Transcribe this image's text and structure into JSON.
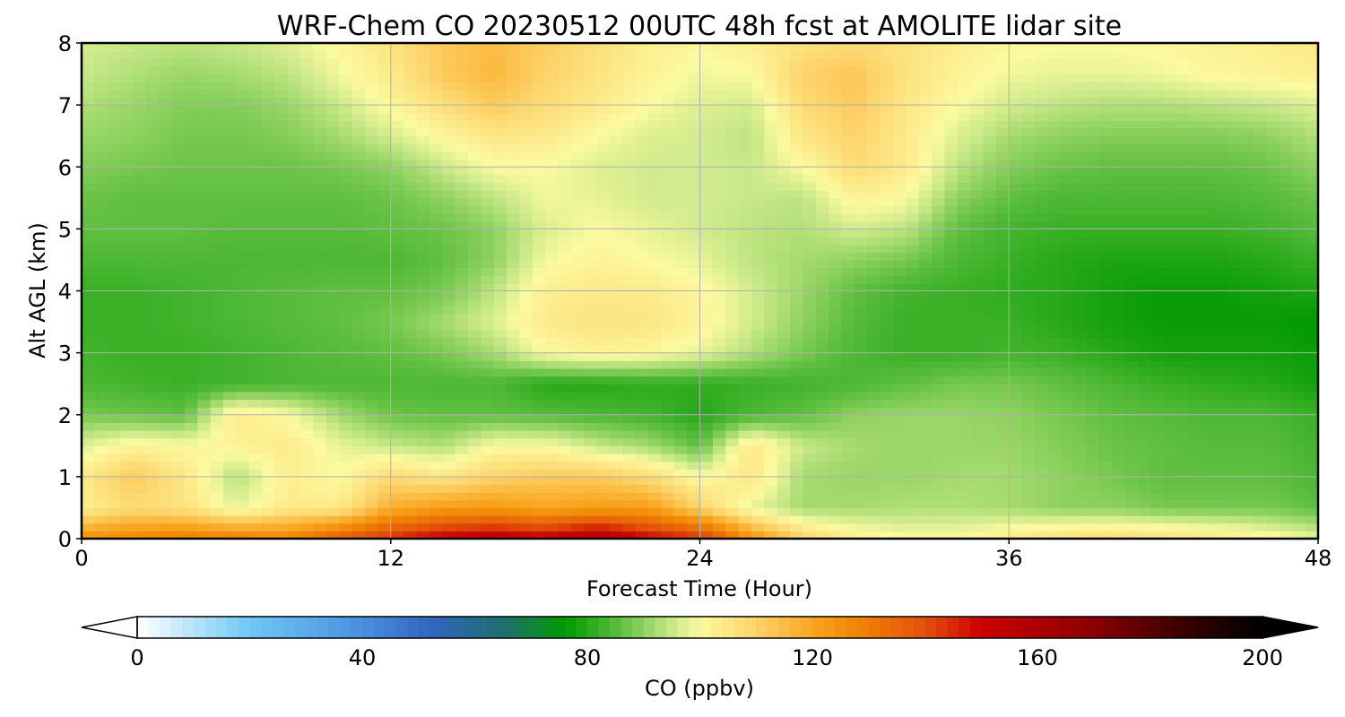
{
  "chart_data": {
    "type": "heatmap",
    "title": "WRF-Chem CO  20230512 00UTC 48h fcst at AMOLITE lidar site",
    "xlabel": "Forecast Time (Hour)",
    "ylabel": "Alt AGL (km)",
    "xlim": [
      0,
      48
    ],
    "ylim": [
      0,
      8
    ],
    "xticks": [
      "0",
      "12",
      "24",
      "36",
      "48"
    ],
    "yticks": [
      "0",
      "1",
      "2",
      "3",
      "4",
      "5",
      "6",
      "7",
      "8"
    ],
    "grid": true,
    "x": [
      0,
      2,
      4,
      6,
      8,
      10,
      12,
      14,
      16,
      18,
      20,
      22,
      24,
      26,
      28,
      30,
      32,
      34,
      36,
      38,
      40,
      42,
      44,
      46,
      48
    ],
    "y": [
      0,
      0.5,
      1,
      1.5,
      2,
      2.5,
      3,
      3.5,
      4,
      4.5,
      5,
      5.5,
      6,
      6.5,
      7,
      7.5,
      8
    ],
    "values": [
      [
        125,
        128,
        130,
        130,
        128,
        138,
        145,
        152,
        155,
        152,
        160,
        150,
        145,
        125,
        110,
        103,
        100,
        100,
        104,
        107,
        108,
        107,
        105,
        102,
        98
      ],
      [
        103,
        108,
        106,
        98,
        104,
        104,
        118,
        122,
        123,
        120,
        122,
        122,
        110,
        98,
        92,
        92,
        93,
        93,
        92,
        90,
        90,
        88,
        88,
        88,
        86
      ],
      [
        104,
        112,
        105,
        93,
        103,
        100,
        108,
        105,
        110,
        112,
        112,
        108,
        100,
        105,
        92,
        91,
        91,
        92,
        92,
        90,
        88,
        86,
        86,
        86,
        84
      ],
      [
        97,
        102,
        100,
        102,
        104,
        98,
        95,
        93,
        100,
        100,
        95,
        92,
        86,
        105,
        95,
        92,
        91,
        91,
        91,
        89,
        87,
        86,
        85,
        85,
        83
      ],
      [
        88,
        87,
        86,
        104,
        100,
        92,
        87,
        86,
        86,
        85,
        84,
        83,
        80,
        84,
        86,
        90,
        91,
        91,
        90,
        88,
        86,
        85,
        84,
        84,
        82
      ],
      [
        84,
        83,
        82,
        83,
        84,
        84,
        84,
        84,
        84,
        80,
        80,
        81,
        81,
        82,
        83,
        84,
        86,
        88,
        88,
        86,
        84,
        82,
        81,
        80,
        78
      ],
      [
        83,
        82,
        82,
        83,
        84,
        85,
        86,
        88,
        92,
        100,
        102,
        101,
        98,
        93,
        88,
        84,
        82,
        82,
        83,
        82,
        80,
        78,
        78,
        78,
        77
      ],
      [
        82,
        82,
        83,
        84,
        85,
        86,
        88,
        92,
        97,
        104,
        106,
        105,
        102,
        96,
        90,
        85,
        82,
        82,
        82,
        80,
        78,
        77,
        77,
        77,
        76
      ],
      [
        82,
        82,
        83,
        84,
        85,
        86,
        86,
        88,
        94,
        103,
        104,
        104,
        101,
        96,
        91,
        86,
        83,
        82,
        81,
        80,
        78,
        77,
        77,
        78,
        79
      ],
      [
        84,
        84,
        84,
        84,
        84,
        84,
        84,
        86,
        90,
        99,
        102,
        100,
        98,
        94,
        92,
        90,
        88,
        84,
        82,
        80,
        79,
        79,
        79,
        80,
        82
      ],
      [
        86,
        86,
        86,
        85,
        85,
        85,
        86,
        87,
        90,
        97,
        100,
        98,
        96,
        94,
        93,
        96,
        94,
        86,
        83,
        82,
        82,
        82,
        82,
        83,
        85
      ],
      [
        87,
        86,
        86,
        86,
        86,
        86,
        87,
        90,
        94,
        99,
        98,
        96,
        96,
        95,
        94,
        102,
        100,
        90,
        86,
        84,
        84,
        84,
        84,
        85,
        87
      ],
      [
        89,
        88,
        87,
        87,
        87,
        88,
        90,
        95,
        100,
        100,
        97,
        96,
        96,
        95,
        100,
        108,
        104,
        94,
        89,
        87,
        86,
        86,
        86,
        87,
        90
      ],
      [
        91,
        90,
        88,
        88,
        89,
        92,
        96,
        101,
        105,
        104,
        100,
        97,
        96,
        94,
        105,
        110,
        104,
        97,
        92,
        90,
        89,
        89,
        89,
        90,
        93
      ],
      [
        93,
        91,
        89,
        89,
        91,
        95,
        101,
        107,
        112,
        108,
        104,
        100,
        97,
        96,
        108,
        112,
        105,
        100,
        96,
        94,
        93,
        93,
        94,
        95,
        97
      ],
      [
        95,
        93,
        91,
        92,
        94,
        99,
        104,
        112,
        116,
        110,
        106,
        102,
        99,
        100,
        110,
        113,
        106,
        102,
        99,
        98,
        98,
        99,
        101,
        102,
        103
      ],
      [
        96,
        95,
        94,
        95,
        97,
        101,
        106,
        112,
        115,
        111,
        107,
        103,
        101,
        103,
        106,
        108,
        106,
        103,
        101,
        100,
        100,
        101,
        102,
        103,
        104
      ]
    ],
    "colorbar": {
      "label": "CO  (ppbv)",
      "min": 0,
      "max": 200,
      "ticks": [
        "0",
        "40",
        "80",
        "120",
        "160",
        "200"
      ],
      "extend": "both",
      "stops": [
        {
          "v": 0,
          "c": "#ffffff"
        },
        {
          "v": 20,
          "c": "#6ec8f5"
        },
        {
          "v": 40,
          "c": "#4a8fe0"
        },
        {
          "v": 52,
          "c": "#3265c0"
        },
        {
          "v": 65,
          "c": "#206f6f"
        },
        {
          "v": 76,
          "c": "#009900"
        },
        {
          "v": 86,
          "c": "#60bf40"
        },
        {
          "v": 95,
          "c": "#c8e888"
        },
        {
          "v": 100,
          "c": "#fcfaa0"
        },
        {
          "v": 110,
          "c": "#fdd36a"
        },
        {
          "v": 120,
          "c": "#f9a51f"
        },
        {
          "v": 128,
          "c": "#f08505"
        },
        {
          "v": 140,
          "c": "#e2510b"
        },
        {
          "v": 150,
          "c": "#cc0000"
        },
        {
          "v": 170,
          "c": "#8b0000"
        },
        {
          "v": 185,
          "c": "#3d0000"
        },
        {
          "v": 200,
          "c": "#000000"
        }
      ]
    }
  }
}
